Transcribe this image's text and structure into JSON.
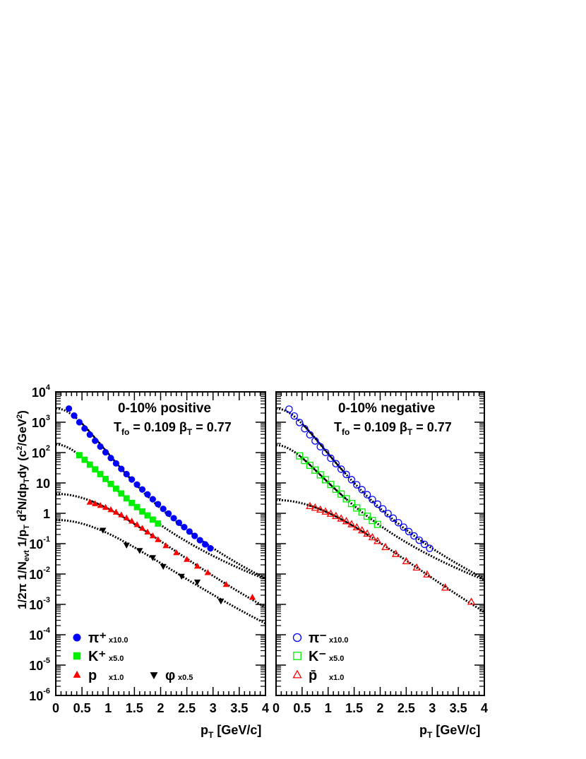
{
  "chart_data": {
    "type": "scatter",
    "ylabel": "1/2π 1/N_evt 1/p_T d²N/dp_T dy (c²/GeV²)",
    "xlabel": "p_T [GeV/c]",
    "xlim": [
      0,
      4
    ],
    "ylim": [
      1e-06,
      10000.0
    ],
    "yscale": "log",
    "xticks": [
      "0",
      "0.5",
      "1",
      "1.5",
      "2",
      "2.5",
      "3",
      "3.5",
      "4"
    ],
    "yticks": [
      {
        "base": "10",
        "exp": "4"
      },
      {
        "base": "10",
        "exp": "3"
      },
      {
        "base": "10",
        "exp": "2"
      },
      {
        "base": "10",
        "exp": ""
      },
      {
        "base": "1",
        "exp": ""
      },
      {
        "base": "10",
        "exp": "-1"
      },
      {
        "base": "10",
        "exp": "-2"
      },
      {
        "base": "10",
        "exp": "-3"
      },
      {
        "base": "10",
        "exp": "-4"
      },
      {
        "base": "10",
        "exp": "-5"
      },
      {
        "base": "10",
        "exp": "-6"
      }
    ],
    "panels": [
      {
        "title": "0-10%  positive",
        "params": {
          "tfo_label": "T",
          "tfo_sub": "fo",
          "tfo_value": "= 0.109",
          "beta_label": "β",
          "beta_sub": "T",
          "beta_value": "= 0.77"
        },
        "series": [
          {
            "name": "π⁺",
            "scale": "x10.0",
            "color": "#0000ff",
            "marker": "circle",
            "filled": true,
            "x": [
              0.25,
              0.35,
              0.45,
              0.55,
              0.65,
              0.75,
              0.85,
              0.95,
              1.05,
              1.15,
              1.25,
              1.35,
              1.45,
              1.55,
              1.65,
              1.75,
              1.85,
              1.95,
              2.05,
              2.15,
              2.25,
              2.35,
              2.45,
              2.55,
              2.65,
              2.75,
              2.85,
              2.95
            ],
            "y": [
              2800,
              1650,
              1000,
              620,
              390,
              245,
              158,
              102,
              66,
              44,
              29,
              19.5,
              13,
              8.8,
              6.1,
              4.2,
              2.9,
              2.0,
              1.4,
              0.98,
              0.69,
              0.49,
              0.35,
              0.25,
              0.18,
              0.13,
              0.095,
              0.07
            ]
          },
          {
            "name": "K⁺",
            "scale": "x5.0",
            "color": "#00ee00",
            "marker": "square",
            "filled": true,
            "x": [
              0.45,
              0.55,
              0.65,
              0.75,
              0.85,
              0.95,
              1.05,
              1.15,
              1.25,
              1.35,
              1.45,
              1.55,
              1.65,
              1.75,
              1.85,
              1.95
            ],
            "y": [
              82,
              58,
              40,
              28,
              19.5,
              13.5,
              9.3,
              6.5,
              4.5,
              3.1,
              2.2,
              1.6,
              1.15,
              0.85,
              0.62,
              0.46
            ]
          },
          {
            "name": "p",
            "scale": "x1.0",
            "color": "#ff0000",
            "marker": "triangle-up",
            "filled": true,
            "x": [
              0.65,
              0.75,
              0.85,
              0.95,
              1.05,
              1.15,
              1.25,
              1.35,
              1.45,
              1.55,
              1.65,
              1.75,
              1.85,
              1.95,
              2.1,
              2.3,
              2.5,
              2.7,
              2.9,
              3.25,
              3.75
            ],
            "y": [
              2.3,
              2.05,
              1.8,
              1.55,
              1.3,
              1.08,
              0.88,
              0.7,
              0.55,
              0.42,
              0.32,
              0.24,
              0.18,
              0.135,
              0.085,
              0.05,
              0.03,
              0.018,
              0.011,
              0.0045,
              0.0017
            ]
          },
          {
            "name": "φ",
            "scale": "x0.5",
            "color": "#000000",
            "marker": "triangle-down",
            "filled": true,
            "x": [
              0.9,
              1.35,
              1.6,
              1.85,
              2.05,
              2.4,
              2.7,
              3.15
            ],
            "y": [
              0.28,
              0.09,
              0.06,
              0.035,
              0.018,
              0.0085,
              0.0055,
              0.0013
            ]
          }
        ]
      },
      {
        "title": "0-10%  negative",
        "params": {
          "tfo_label": "T",
          "tfo_sub": "fo",
          "tfo_value": "= 0.109",
          "beta_label": "β",
          "beta_sub": "T",
          "beta_value": "= 0.77"
        },
        "series": [
          {
            "name": "π⁻",
            "scale": "x10.0",
            "color": "#0000ff",
            "marker": "circle",
            "filled": false,
            "x": [
              0.25,
              0.35,
              0.45,
              0.55,
              0.65,
              0.75,
              0.85,
              0.95,
              1.05,
              1.15,
              1.25,
              1.35,
              1.45,
              1.55,
              1.65,
              1.75,
              1.85,
              1.95,
              2.05,
              2.15,
              2.25,
              2.35,
              2.45,
              2.55,
              2.65,
              2.75,
              2.85,
              2.95
            ],
            "y": [
              2700,
              1600,
              980,
              610,
              385,
              242,
              156,
              101,
              65,
              43,
              28.5,
              19,
              12.8,
              8.7,
              6.0,
              4.1,
              2.85,
              2.0,
              1.4,
              0.98,
              0.69,
              0.49,
              0.35,
              0.25,
              0.18,
              0.13,
              0.095,
              0.07
            ]
          },
          {
            "name": "K⁻",
            "scale": "x5.0",
            "color": "#00ee00",
            "marker": "square",
            "filled": false,
            "x": [
              0.45,
              0.55,
              0.65,
              0.75,
              0.85,
              0.95,
              1.05,
              1.15,
              1.25,
              1.35,
              1.45,
              1.55,
              1.65,
              1.75,
              1.85,
              1.95
            ],
            "y": [
              78,
              55,
              38,
              26.5,
              18.5,
              12.8,
              8.9,
              6.2,
              4.3,
              3.0,
              2.1,
              1.5,
              1.1,
              0.8,
              0.58,
              0.43
            ]
          },
          {
            "name": "p̄",
            "scale": "x1.0",
            "color": "#ff0000",
            "marker": "triangle-up",
            "filled": false,
            "x": [
              0.65,
              0.75,
              0.85,
              0.95,
              1.05,
              1.15,
              1.25,
              1.35,
              1.45,
              1.55,
              1.65,
              1.75,
              1.85,
              1.95,
              2.1,
              2.3,
              2.5,
              2.7,
              2.9,
              3.25,
              3.75
            ],
            "y": [
              1.7,
              1.5,
              1.3,
              1.12,
              0.95,
              0.8,
              0.66,
              0.54,
              0.43,
              0.34,
              0.27,
              0.21,
              0.16,
              0.12,
              0.076,
              0.045,
              0.026,
              0.016,
              0.0095,
              0.0035,
              0.0012
            ]
          }
        ]
      }
    ]
  }
}
